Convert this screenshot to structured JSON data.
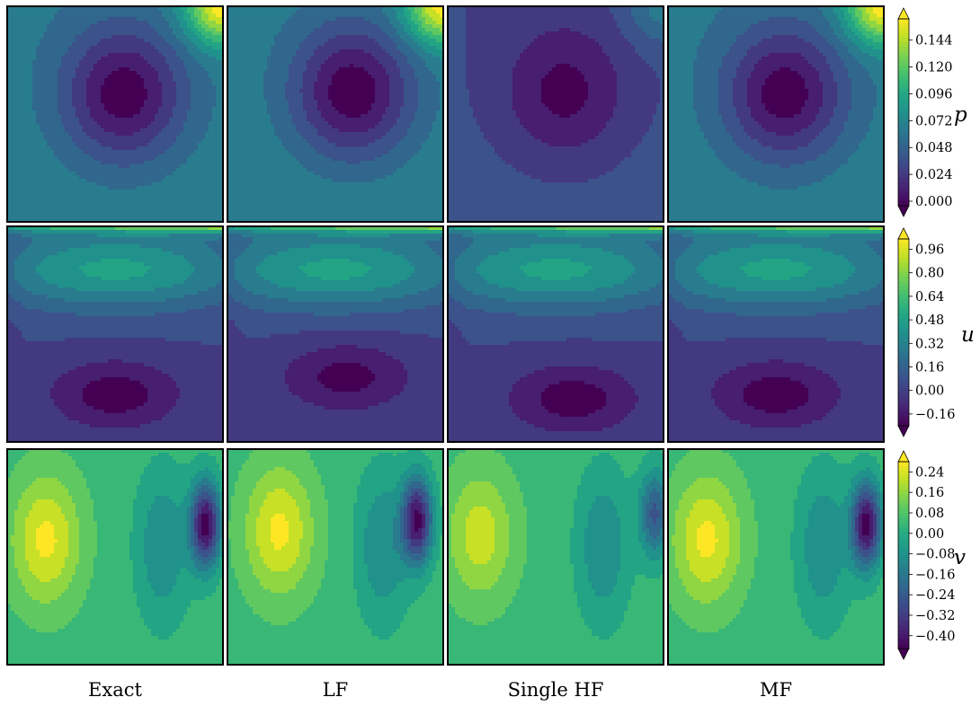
{
  "figure": {
    "columns": [
      "Exact",
      "LF",
      "Single HF",
      "MF"
    ]
  },
  "chart_data": [
    {
      "type": "heatmap",
      "variable": "p",
      "colormap": "viridis",
      "colorbar": {
        "label": "p",
        "ticks": [
          "0.000",
          "0.024",
          "0.048",
          "0.072",
          "0.096",
          "0.120",
          "0.144"
        ],
        "range": [
          -0.004,
          0.163
        ],
        "extend": "both"
      },
      "panels": [
        {
          "method": "Exact",
          "center": [
            0.54,
            0.41
          ],
          "min": 0.001,
          "background": 0.068,
          "corner": "top-right",
          "corner_max": 0.163
        },
        {
          "method": "LF",
          "center": [
            0.58,
            0.4
          ],
          "min": 0.0,
          "background": 0.07,
          "corner": "top-right",
          "corner_max": 0.163
        },
        {
          "method": "Single HF",
          "center": [
            0.54,
            0.4
          ],
          "min": 0.005,
          "background": 0.038,
          "corner": "top-right",
          "corner_max": 0.07
        },
        {
          "method": "MF",
          "center": [
            0.54,
            0.41
          ],
          "min": 0.001,
          "background": 0.068,
          "corner": "top-right",
          "corner_max": 0.163
        }
      ]
    },
    {
      "type": "heatmap",
      "variable": "u",
      "colormap": "viridis",
      "colorbar": {
        "label": "u",
        "ticks": [
          "0.96",
          "0.80",
          "0.64",
          "0.48",
          "0.32",
          "0.16",
          "0.00",
          "−0.16"
        ],
        "range": [
          -0.24,
          1.03
        ],
        "extend": "both"
      },
      "panels": [
        {
          "method": "Exact",
          "vortex_center": [
            0.5,
            0.78
          ],
          "min": -0.2,
          "top_lid": 1.0
        },
        {
          "method": "LF",
          "vortex_center": [
            0.55,
            0.7
          ],
          "min": -0.18,
          "top_lid": 1.0
        },
        {
          "method": "Single HF",
          "vortex_center": [
            0.58,
            0.8
          ],
          "min": -0.2,
          "top_lid": 1.0
        },
        {
          "method": "MF",
          "vortex_center": [
            0.5,
            0.78
          ],
          "min": -0.2,
          "top_lid": 1.0
        }
      ]
    },
    {
      "type": "heatmap",
      "variable": "v",
      "colormap": "viridis",
      "colorbar": {
        "label": "v",
        "ticks": [
          "0.24",
          "0.16",
          "0.08",
          "0.00",
          "−0.08",
          "−0.16",
          "−0.24",
          "−0.32",
          "−0.40"
        ],
        "range": [
          -0.45,
          0.28
        ],
        "extend": "both"
      },
      "panels": [
        {
          "method": "Exact",
          "max_center": [
            0.18,
            0.42
          ],
          "max": 0.24,
          "min_center": [
            0.92,
            0.35
          ],
          "min": -0.42
        },
        {
          "method": "LF",
          "max_center": [
            0.24,
            0.38
          ],
          "max": 0.24,
          "min_center": [
            0.88,
            0.33
          ],
          "min": -0.4
        },
        {
          "method": "Single HF",
          "max_center": [
            0.15,
            0.4
          ],
          "max": 0.2,
          "min_center": [
            0.96,
            0.3
          ],
          "min": -0.24
        },
        {
          "method": "MF",
          "max_center": [
            0.18,
            0.42
          ],
          "max": 0.24,
          "min_center": [
            0.92,
            0.35
          ],
          "min": -0.42
        }
      ]
    }
  ]
}
